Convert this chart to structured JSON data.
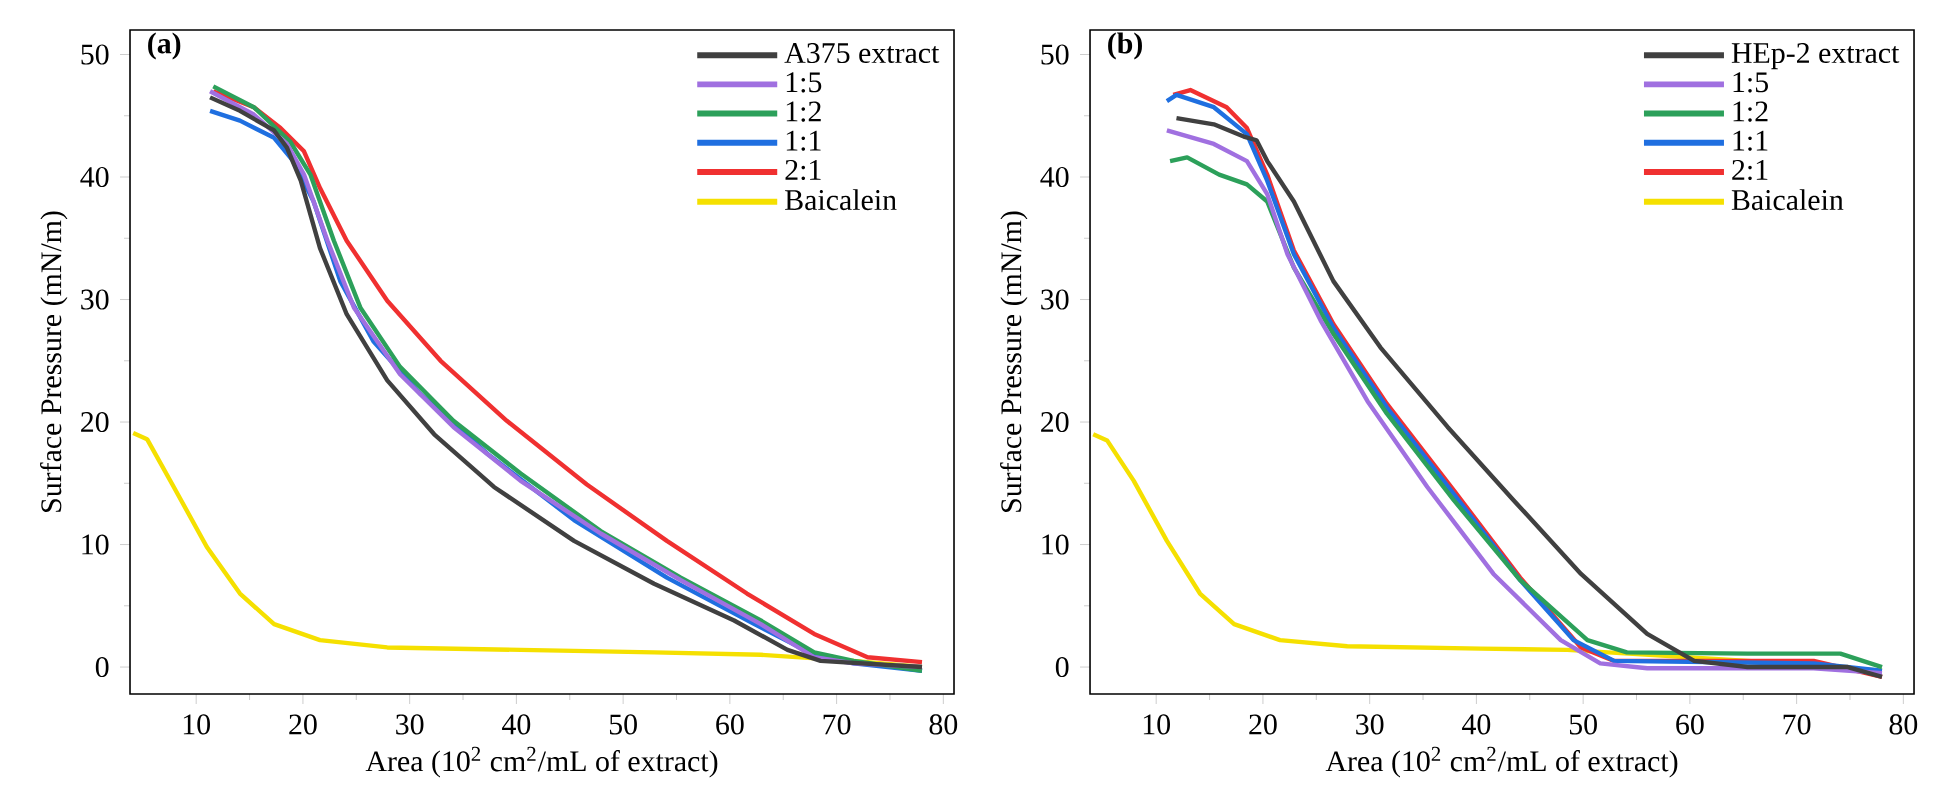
{
  "chart_data": [
    {
      "type": "line",
      "title": "(a)",
      "xlabel": "Area (10$^{2}$ cm$^{2}$/mL of extract)",
      "ylabel": "Surface Pressure (mN/m)",
      "xlim": [
        3.8,
        81
      ],
      "ylim": [
        -2.2,
        52
      ],
      "xticks": [
        10,
        20,
        30,
        40,
        50,
        60,
        70,
        80
      ],
      "yticks": [
        0,
        10,
        20,
        30,
        40,
        50
      ],
      "legend": "top right",
      "series": [
        {
          "name": "A375 extract",
          "color": "#404040",
          "x": [
            11.3,
            14.1,
            17.3,
            18.5,
            19.8,
            21.6,
            24.1,
            27.9,
            32.3,
            37.9,
            45.4,
            52.9,
            60.4,
            65.4,
            68.5,
            78
          ],
          "values": [
            46.5,
            45.4,
            43.8,
            42.4,
            39.7,
            34.2,
            28.8,
            23.4,
            19.0,
            14.7,
            10.3,
            6.8,
            3.8,
            1.4,
            0.5,
            0
          ]
        },
        {
          "name": "1:5",
          "color": "#a070e0",
          "x": [
            11.3,
            15.4,
            18.5,
            20.1,
            22.3,
            24.8,
            29.1,
            34.1,
            40.4,
            47.9,
            55.4,
            62.9,
            67.9,
            71.6,
            78
          ],
          "values": [
            47.0,
            45.1,
            42.7,
            40.2,
            34.8,
            29.3,
            23.9,
            19.6,
            15.2,
            10.9,
            7.1,
            3.5,
            0.8,
            0.3,
            0
          ]
        },
        {
          "name": "1:2",
          "color": "#2ca05a",
          "x": [
            11.6,
            15.4,
            18.8,
            20.7,
            22.9,
            25.4,
            29.1,
            34.1,
            40.4,
            47.9,
            55.4,
            62.9,
            67.9,
            71.6,
            78
          ],
          "values": [
            47.4,
            45.7,
            42.9,
            40.2,
            34.8,
            29.3,
            24.5,
            20.1,
            15.8,
            11.1,
            7.3,
            3.8,
            1.2,
            0.5,
            -0.3
          ]
        },
        {
          "name": "1:1",
          "color": "#1f6fe0",
          "x": [
            11.3,
            14.1,
            17.3,
            19.1,
            21.0,
            23.5,
            26.6,
            31.0,
            37.3,
            45.4,
            54.1,
            62.3,
            67.9,
            71.6,
            78
          ],
          "values": [
            45.4,
            44.6,
            43.2,
            41.3,
            38.0,
            31.5,
            26.6,
            22.3,
            17.4,
            12.0,
            7.3,
            3.5,
            1.0,
            0.3,
            -0.3
          ]
        },
        {
          "name": "2:1",
          "color": "#f03030",
          "x": [
            11.6,
            15.4,
            17.9,
            20.1,
            21.6,
            24.1,
            27.9,
            32.9,
            39.1,
            46.6,
            54.1,
            61.6,
            67.9,
            72.9,
            78
          ],
          "values": [
            47.0,
            45.7,
            44.0,
            42.1,
            39.1,
            34.8,
            29.9,
            25.0,
            20.1,
            14.9,
            10.3,
            6.0,
            2.7,
            0.8,
            0.4
          ]
        },
        {
          "name": "Baicalein",
          "color": "#f5e000",
          "x": [
            4.1,
            5.4,
            7.9,
            11.0,
            14.1,
            17.3,
            21.6,
            27.9,
            40.4,
            52.9,
            62.9,
            71.6,
            78
          ],
          "values": [
            19.1,
            18.6,
            14.7,
            9.8,
            6.0,
            3.5,
            2.2,
            1.6,
            1.4,
            1.2,
            1.0,
            0.5,
            0
          ]
        }
      ]
    },
    {
      "type": "line",
      "title": "(b)",
      "xlabel": "Area (10$^{2}$ cm$^{2}$/mL of extract)",
      "ylabel": "Surface Pressure (mN/m)",
      "xlim": [
        3.8,
        81
      ],
      "ylim": [
        -2.2,
        52
      ],
      "xticks": [
        10,
        20,
        30,
        40,
        50,
        60,
        70,
        80
      ],
      "yticks": [
        0,
        10,
        20,
        30,
        40,
        50
      ],
      "legend": "top right",
      "series": [
        {
          "name": "HEp-2 extract",
          "color": "#404040",
          "x": [
            11.9,
            15.4,
            18.2,
            19.4,
            20.4,
            22.9,
            26.6,
            31.0,
            37.3,
            43.5,
            49.8,
            56.0,
            60.4,
            65.4,
            74.8,
            78
          ],
          "values": [
            44.8,
            44.3,
            43.3,
            43.0,
            41.3,
            38.0,
            31.5,
            26.1,
            19.6,
            13.6,
            7.6,
            2.7,
            0.5,
            0,
            0,
            -0.8
          ]
        },
        {
          "name": "1:5",
          "color": "#a070e0",
          "x": [
            11.0,
            15.4,
            18.5,
            20.4,
            22.3,
            25.4,
            29.8,
            35.4,
            41.6,
            47.9,
            51.6,
            56.0,
            71.6,
            78
          ],
          "values": [
            43.8,
            42.7,
            41.3,
            38.6,
            33.7,
            28.3,
            21.7,
            14.7,
            7.6,
            2.2,
            0.3,
            -0.1,
            -0.1,
            -0.5
          ]
        },
        {
          "name": "1:2",
          "color": "#2ca05a",
          "x": [
            11.3,
            12.9,
            15.9,
            18.5,
            20.4,
            22.9,
            26.6,
            31.6,
            37.9,
            44.1,
            50.4,
            54.1,
            65.4,
            74.1,
            78
          ],
          "values": [
            41.3,
            41.6,
            40.2,
            39.4,
            38.0,
            32.6,
            27.2,
            20.7,
            13.6,
            7.1,
            2.2,
            1.2,
            1.1,
            1.1,
            0
          ]
        },
        {
          "name": "1:1",
          "color": "#1f6fe0",
          "x": [
            11.0,
            11.9,
            15.4,
            18.5,
            20.4,
            22.9,
            26.6,
            31.6,
            37.9,
            44.1,
            49.1,
            52.9,
            71.6,
            78
          ],
          "values": [
            46.2,
            46.7,
            45.7,
            43.5,
            39.7,
            33.7,
            27.7,
            21.2,
            14.1,
            7.1,
            2.2,
            0.5,
            0.3,
            -0.3
          ]
        },
        {
          "name": "2:1",
          "color": "#f03030",
          "x": [
            11.6,
            13.2,
            16.6,
            18.5,
            20.4,
            22.9,
            26.6,
            31.6,
            37.9,
            44.1,
            49.8,
            52.9,
            71.6,
            78
          ],
          "values": [
            46.7,
            47.1,
            45.7,
            44.0,
            40.2,
            34.0,
            28.0,
            21.5,
            14.4,
            7.3,
            1.6,
            0.5,
            0.5,
            -0.8
          ]
        },
        {
          "name": "Baicalein",
          "color": "#f5e000",
          "x": [
            4.1,
            5.4,
            7.9,
            11.0,
            14.1,
            17.3,
            21.6,
            27.9,
            40.4,
            48.5,
            65.4,
            78
          ],
          "values": [
            19.0,
            18.5,
            15.2,
            10.3,
            6.0,
            3.5,
            2.2,
            1.7,
            1.5,
            1.4,
            0.5,
            -0.3
          ]
        }
      ]
    }
  ]
}
